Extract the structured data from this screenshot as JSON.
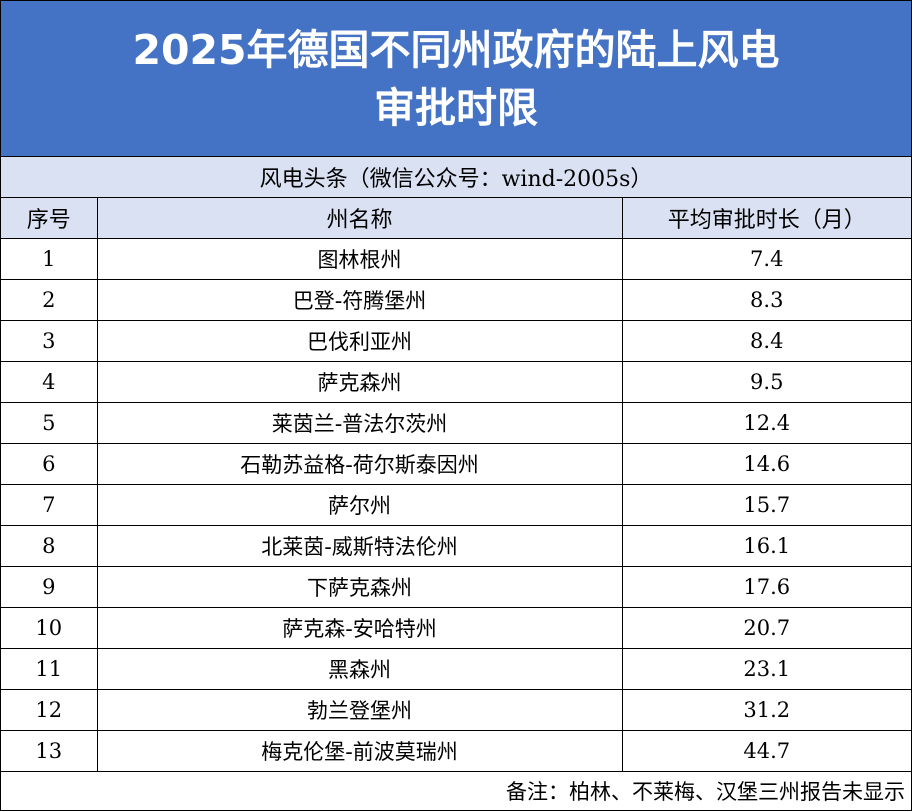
{
  "title": {
    "line1": "2025年德国不同州政府的陆上风电",
    "line2": "审批时限"
  },
  "subtitle": "风电头条（微信公众号：wind-2005s）",
  "table": {
    "headers": [
      "序号",
      "州名称",
      "平均审批时长（月）"
    ],
    "rows": [
      {
        "index": "1",
        "state": "图林根州",
        "months": "7.4"
      },
      {
        "index": "2",
        "state": "巴登-符腾堡州",
        "months": "8.3"
      },
      {
        "index": "3",
        "state": "巴伐利亚州",
        "months": "8.4"
      },
      {
        "index": "4",
        "state": "萨克森州",
        "months": "9.5"
      },
      {
        "index": "5",
        "state": "莱茵兰-普法尔茨州",
        "months": "12.4"
      },
      {
        "index": "6",
        "state": "石勒苏益格-荷尔斯泰因州",
        "months": "14.6"
      },
      {
        "index": "7",
        "state": "萨尔州",
        "months": "15.7"
      },
      {
        "index": "8",
        "state": "北莱茵-威斯特法伦州",
        "months": "16.1"
      },
      {
        "index": "9",
        "state": "下萨克森州",
        "months": "17.6"
      },
      {
        "index": "10",
        "state": "萨克森-安哈特州",
        "months": "20.7"
      },
      {
        "index": "11",
        "state": "黑森州",
        "months": "23.1"
      },
      {
        "index": "12",
        "state": "勃兰登堡州",
        "months": "31.2"
      },
      {
        "index": "13",
        "state": "梅克伦堡-前波莫瑞州",
        "months": "44.7"
      }
    ]
  },
  "note": "备注：柏林、不莱梅、汉堡三州报告未显示",
  "colors": {
    "title_background": "#4472c4",
    "title_text": "#ffffff",
    "header_background": "#d9e1f2",
    "border": "#000000"
  }
}
